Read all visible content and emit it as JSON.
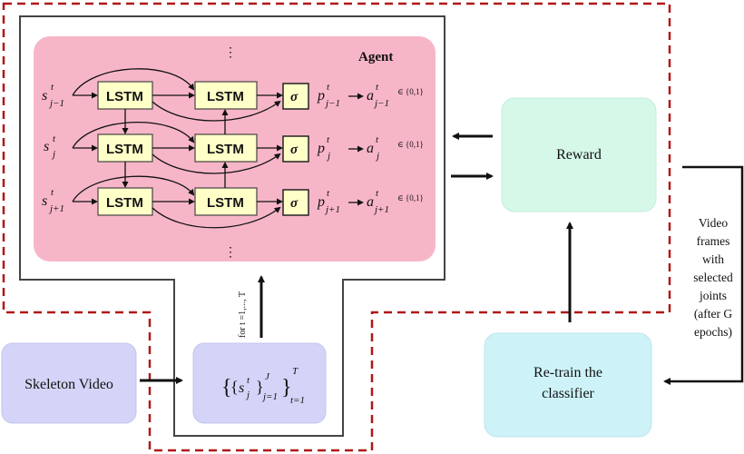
{
  "agent": {
    "title": "Agent",
    "lstm_label": "LSTM",
    "sigma_label": "σ",
    "ellipsis": "⋮",
    "rows": [
      {
        "s_base": "s",
        "s_sup": "t",
        "s_sub": "j−1",
        "p_base": "p",
        "p_sup": "t",
        "p_sub": "j−1",
        "a_base": "a",
        "a_sup": "t",
        "a_sub": "j−1",
        "domain": "∈ {0,1}"
      },
      {
        "s_base": "s",
        "s_sup": "t",
        "s_sub": "j",
        "p_base": "p",
        "p_sup": "t",
        "p_sub": "j",
        "a_base": "a",
        "a_sup": "t",
        "a_sub": "j",
        "domain": "∈ {0,1}"
      },
      {
        "s_base": "s",
        "s_sup": "t",
        "s_sub": "j+1",
        "p_base": "p",
        "p_sup": "t",
        "p_sub": "j+1",
        "a_base": "a",
        "a_sup": "t",
        "a_sub": "j+1",
        "domain": "∈ {0,1}"
      }
    ]
  },
  "reward": {
    "label": "Reward"
  },
  "retrain": {
    "line1": "Re-train the",
    "line2": "classifier"
  },
  "skeleton": {
    "label": "Skeleton Video"
  },
  "input_set": {
    "open": "{",
    "inner_open": "{",
    "s": "s",
    "s_sup": "t",
    "s_sub": "j",
    "inner_close": "}",
    "inner_sup": "J",
    "inner_sub": "j=1",
    "close": "}",
    "outer_sup": "T",
    "outer_sub": "t=1"
  },
  "loop_label": "for t =1,..., T",
  "side_note": [
    "Video",
    "frames",
    "with",
    "selected",
    "joints",
    "(after G",
    "epochs)"
  ],
  "colors": {
    "agent_fill": "#f7b6c8",
    "lstm_fill": "#ffffc8",
    "reward_fill": "#d5f8e8",
    "retrain_fill": "#cdf3f8",
    "skeleton_fill": "#d4d4f8",
    "dashed": "#b01818",
    "frame": "#444444"
  }
}
